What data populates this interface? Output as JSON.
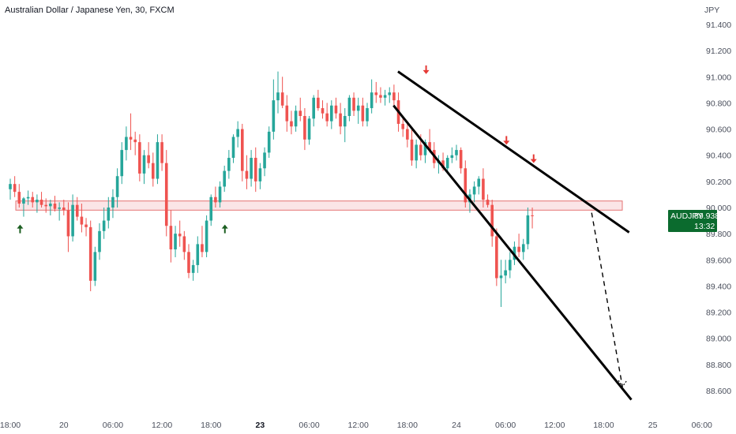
{
  "chart_data": {
    "type": "candlestick",
    "title": "Australian Dollar / Japanese Yen, 30, FXCM",
    "currency": "JPY",
    "symbol": "AUDJPY",
    "last_price": "89.938",
    "countdown": "13:32",
    "ylim": [
      88.45,
      91.55
    ],
    "grid": false,
    "y_ticks": [
      "91.400",
      "91.200",
      "91.000",
      "90.800",
      "90.600",
      "90.400",
      "90.200",
      "90.000",
      "89.800",
      "89.600",
      "89.400",
      "89.200",
      "89.000",
      "88.800",
      "88.600"
    ],
    "x_ticks": [
      {
        "label": "18:00",
        "i": 0
      },
      {
        "label": "20",
        "i": 12
      },
      {
        "label": "06:00",
        "i": 23
      },
      {
        "label": "12:00",
        "i": 34
      },
      {
        "label": "18:00",
        "i": 45
      },
      {
        "label": "23",
        "i": 56,
        "bold": true
      },
      {
        "label": "06:00",
        "i": 67
      },
      {
        "label": "12:00",
        "i": 78
      },
      {
        "label": "18:00",
        "i": 89
      },
      {
        "label": "24",
        "i": 100
      },
      {
        "label": "06:00",
        "i": 111
      },
      {
        "label": "12:00",
        "i": 122
      },
      {
        "label": "18:00",
        "i": 133
      },
      {
        "label": "25",
        "i": 144
      },
      {
        "label": "06:00",
        "i": 155
      }
    ],
    "colors": {
      "up": "#26a69a",
      "down": "#ef5350",
      "zone_fill": "#f8d0d3",
      "zone_border": "#e57373",
      "badge": "#0b6b2e",
      "line": "#000000",
      "arrow_up": "#1b5e20",
      "arrow_down": "#e53935"
    },
    "candles_ohlc": [
      [
        90.14,
        90.22,
        90.06,
        90.18
      ],
      [
        90.18,
        90.24,
        90.08,
        90.12
      ],
      [
        90.12,
        90.18,
        90.0,
        90.03
      ],
      [
        90.03,
        90.08,
        89.93,
        90.07
      ],
      [
        90.07,
        90.13,
        90.02,
        90.08
      ],
      [
        90.08,
        90.12,
        90.0,
        90.04
      ],
      [
        90.04,
        90.1,
        89.96,
        90.06
      ],
      [
        90.06,
        90.12,
        90.0,
        90.02
      ],
      [
        90.02,
        90.07,
        89.96,
        90.01
      ],
      [
        90.01,
        90.06,
        89.94,
        90.03
      ],
      [
        90.03,
        90.09,
        89.97,
        89.99
      ],
      [
        89.99,
        90.04,
        89.9,
        90.0
      ],
      [
        90.0,
        90.06,
        89.94,
        89.98
      ],
      [
        89.98,
        90.04,
        89.66,
        89.78
      ],
      [
        89.78,
        90.1,
        89.74,
        90.02
      ],
      [
        90.02,
        90.08,
        89.9,
        89.93
      ],
      [
        89.93,
        90.03,
        89.81,
        89.87
      ],
      [
        89.87,
        89.92,
        89.78,
        89.85
      ],
      [
        89.85,
        89.9,
        89.36,
        89.44
      ],
      [
        89.44,
        89.7,
        89.4,
        89.66
      ],
      [
        89.66,
        89.88,
        89.6,
        89.82
      ],
      [
        89.82,
        90.0,
        89.76,
        89.9
      ],
      [
        89.9,
        90.08,
        89.84,
        90.0
      ],
      [
        90.0,
        90.14,
        89.92,
        90.08
      ],
      [
        90.08,
        90.3,
        90.0,
        90.24
      ],
      [
        90.24,
        90.5,
        90.18,
        90.44
      ],
      [
        90.44,
        90.62,
        90.36,
        90.54
      ],
      [
        90.54,
        90.72,
        90.44,
        90.52
      ],
      [
        90.52,
        90.58,
        90.4,
        90.5
      ],
      [
        90.5,
        90.56,
        90.2,
        90.26
      ],
      [
        90.26,
        90.44,
        90.18,
        90.4
      ],
      [
        90.4,
        90.5,
        90.3,
        90.34
      ],
      [
        90.34,
        90.42,
        90.16,
        90.22
      ],
      [
        90.22,
        90.56,
        90.18,
        90.5
      ],
      [
        90.5,
        90.56,
        90.28,
        90.34
      ],
      [
        90.34,
        90.44,
        89.78,
        89.86
      ],
      [
        89.86,
        89.98,
        89.58,
        89.68
      ],
      [
        89.68,
        89.86,
        89.62,
        89.8
      ],
      [
        89.8,
        89.9,
        89.7,
        89.78
      ],
      [
        89.78,
        89.82,
        89.6,
        89.66
      ],
      [
        89.66,
        89.72,
        89.46,
        89.5
      ],
      [
        89.5,
        89.6,
        89.44,
        89.56
      ],
      [
        89.56,
        89.78,
        89.5,
        89.72
      ],
      [
        89.72,
        89.86,
        89.62,
        89.66
      ],
      [
        89.66,
        89.94,
        89.62,
        89.9
      ],
      [
        89.9,
        90.1,
        89.86,
        90.08
      ],
      [
        90.08,
        90.16,
        90.0,
        90.04
      ],
      [
        90.04,
        90.2,
        90.0,
        90.16
      ],
      [
        90.16,
        90.32,
        90.12,
        90.28
      ],
      [
        90.28,
        90.44,
        90.22,
        90.38
      ],
      [
        90.38,
        90.56,
        90.34,
        90.54
      ],
      [
        90.54,
        90.66,
        90.46,
        90.6
      ],
      [
        90.6,
        90.64,
        90.2,
        90.28
      ],
      [
        90.28,
        90.4,
        90.14,
        90.22
      ],
      [
        90.22,
        90.44,
        90.16,
        90.38
      ],
      [
        90.38,
        90.46,
        90.12,
        90.2
      ],
      [
        90.2,
        90.34,
        90.14,
        90.3
      ],
      [
        90.3,
        90.46,
        90.24,
        90.42
      ],
      [
        90.42,
        90.62,
        90.38,
        90.58
      ],
      [
        90.58,
        90.98,
        90.52,
        90.82
      ],
      [
        90.82,
        91.04,
        90.72,
        90.88
      ],
      [
        90.88,
        91.0,
        90.76,
        90.78
      ],
      [
        90.78,
        90.86,
        90.58,
        90.66
      ],
      [
        90.66,
        90.74,
        90.56,
        90.62
      ],
      [
        90.62,
        90.78,
        90.58,
        90.74
      ],
      [
        90.74,
        90.84,
        90.66,
        90.7
      ],
      [
        90.7,
        90.76,
        90.44,
        90.52
      ],
      [
        90.52,
        90.7,
        90.48,
        90.68
      ],
      [
        90.68,
        90.86,
        90.62,
        90.84
      ],
      [
        90.84,
        90.9,
        90.74,
        90.76
      ],
      [
        90.76,
        90.82,
        90.68,
        90.72
      ],
      [
        90.72,
        90.8,
        90.62,
        90.66
      ],
      [
        90.66,
        90.82,
        90.6,
        90.78
      ],
      [
        90.78,
        90.84,
        90.68,
        90.72
      ],
      [
        90.72,
        90.8,
        90.56,
        90.62
      ],
      [
        90.62,
        90.76,
        90.5,
        90.7
      ],
      [
        90.7,
        90.86,
        90.66,
        90.84
      ],
      [
        90.84,
        90.88,
        90.7,
        90.74
      ],
      [
        90.74,
        90.84,
        90.64,
        90.78
      ],
      [
        90.78,
        90.84,
        90.62,
        90.66
      ],
      [
        90.66,
        90.8,
        90.62,
        90.76
      ],
      [
        90.76,
        90.98,
        90.72,
        90.88
      ],
      [
        90.88,
        90.96,
        90.8,
        90.86
      ],
      [
        90.86,
        90.92,
        90.8,
        90.84
      ],
      [
        90.84,
        90.9,
        90.78,
        90.86
      ],
      [
        90.86,
        90.92,
        90.8,
        90.88
      ],
      [
        90.88,
        90.94,
        90.78,
        90.82
      ],
      [
        90.82,
        90.88,
        90.58,
        90.64
      ],
      [
        90.64,
        90.7,
        90.54,
        90.6
      ],
      [
        90.6,
        90.66,
        90.46,
        90.52
      ],
      [
        90.52,
        90.6,
        90.32,
        90.36
      ],
      [
        90.36,
        90.52,
        90.3,
        90.48
      ],
      [
        90.48,
        90.56,
        90.36,
        90.4
      ],
      [
        90.4,
        90.52,
        90.34,
        90.5
      ],
      [
        90.5,
        90.6,
        90.42,
        90.44
      ],
      [
        90.44,
        90.5,
        90.3,
        90.34
      ],
      [
        90.34,
        90.4,
        90.26,
        90.36
      ],
      [
        90.36,
        90.42,
        90.28,
        90.3
      ],
      [
        90.3,
        90.4,
        90.26,
        90.38
      ],
      [
        90.38,
        90.46,
        90.34,
        90.4
      ],
      [
        90.4,
        90.48,
        90.36,
        90.44
      ],
      [
        90.44,
        90.46,
        90.26,
        90.3
      ],
      [
        90.3,
        90.36,
        90.0,
        90.04
      ],
      [
        90.04,
        90.14,
        89.96,
        90.1
      ],
      [
        90.1,
        90.2,
        90.04,
        90.16
      ],
      [
        90.16,
        90.24,
        90.1,
        90.22
      ],
      [
        90.22,
        90.3,
        90.0,
        90.06
      ],
      [
        90.06,
        90.1,
        90.0,
        90.02
      ],
      [
        90.02,
        90.06,
        89.7,
        89.78
      ],
      [
        89.78,
        89.84,
        89.4,
        89.46
      ],
      [
        89.46,
        89.6,
        89.24,
        89.48
      ],
      [
        89.48,
        89.6,
        89.42,
        89.52
      ],
      [
        89.52,
        89.66,
        89.46,
        89.6
      ],
      [
        89.6,
        89.74,
        89.56,
        89.7
      ],
      [
        89.7,
        89.8,
        89.62,
        89.66
      ],
      [
        89.66,
        89.76,
        89.6,
        89.72
      ],
      [
        89.72,
        90.0,
        89.68,
        89.94
      ],
      [
        89.94,
        90.0,
        89.84,
        89.938
      ]
    ],
    "support_zone": [
      89.98,
      90.05
    ],
    "trend_lines": [
      {
        "name": "upper",
        "from": [
          91.04,
          "i-start"
        ],
        "to": [
          89.81,
          "i-end"
        ]
      },
      {
        "name": "lower",
        "from": [
          90.78,
          "i-start"
        ],
        "to": [
          88.53,
          "i-end"
        ]
      }
    ],
    "annotations": {
      "up_arrows_at_price": [
        89.93,
        89.93
      ],
      "down_arrows_at_price": [
        90.95,
        90.44,
        90.3
      ]
    }
  }
}
